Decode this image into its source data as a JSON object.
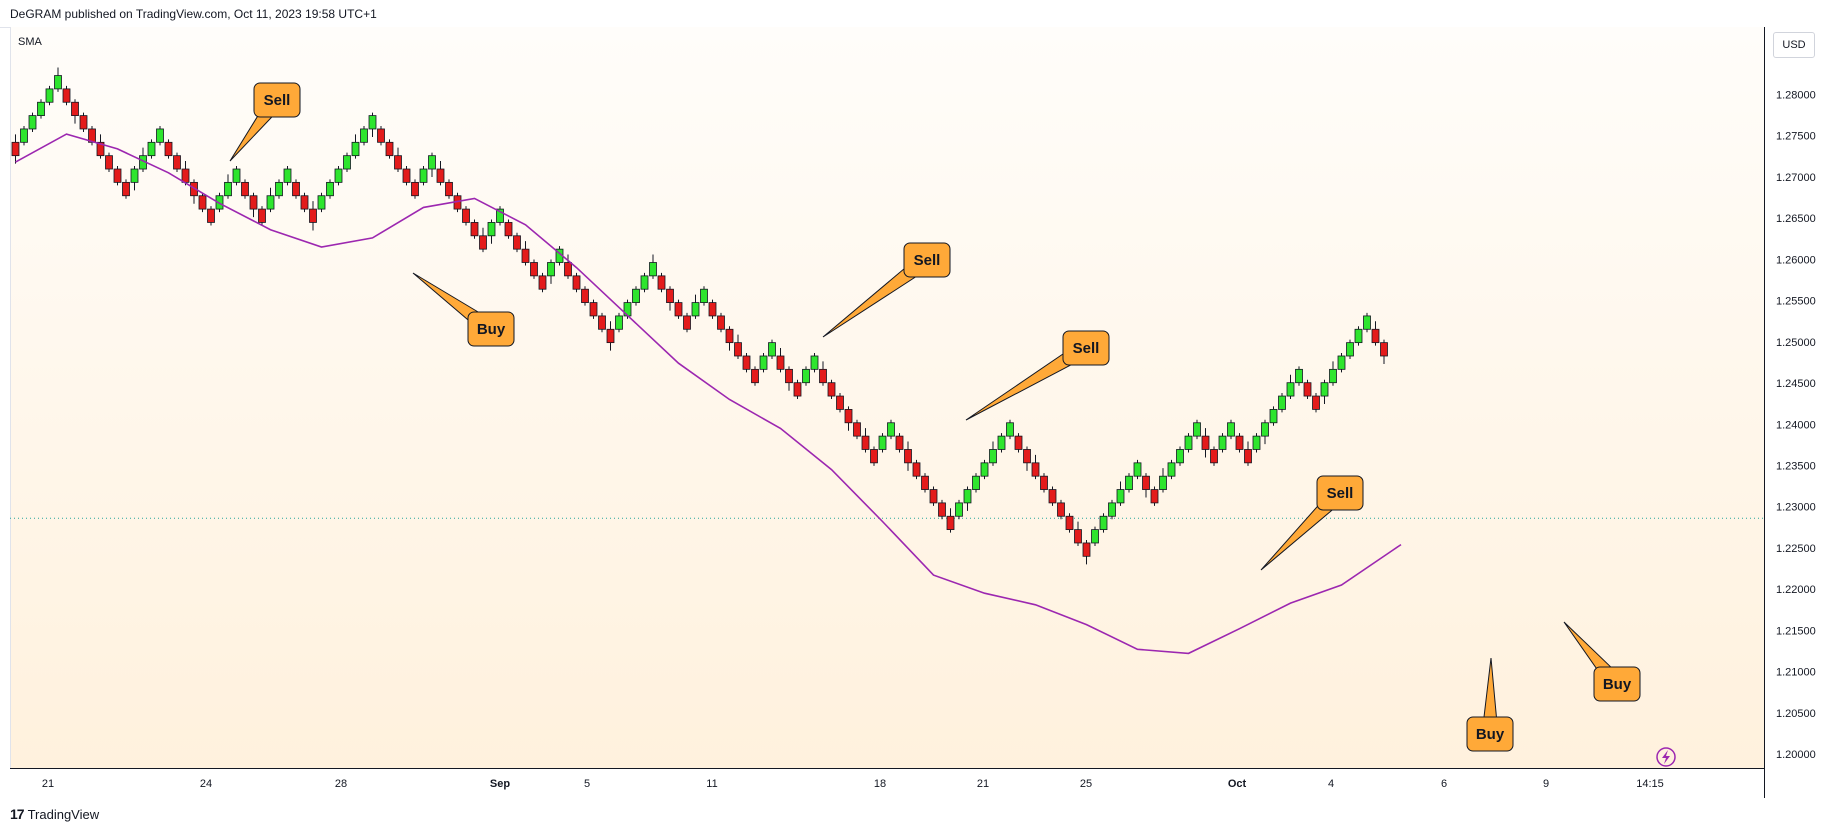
{
  "header": {
    "published_text": "DeGRAM published on TradingView.com, Oct 11, 2023 19:58 UTC+1"
  },
  "indicator": {
    "label": "SMA"
  },
  "price_axis": {
    "currency": "USD"
  },
  "footer": {
    "brand": "TradingView",
    "logo_mark": "17"
  },
  "colors": {
    "up": "#2ee52e",
    "down": "#e31b1b",
    "sma": "#9c27b0",
    "callout": "#ffa938"
  },
  "icons": {
    "replay": "lightning-icon"
  },
  "chart_data": {
    "type": "renko",
    "title": "",
    "ylim": [
      1.196,
      1.2845
    ],
    "yticks": [
      "1.28000",
      "1.27500",
      "1.27000",
      "1.26500",
      "1.26000",
      "1.25500",
      "1.25000",
      "1.24500",
      "1.24000",
      "1.23500",
      "1.23000",
      "1.22500",
      "1.22000",
      "1.21500",
      "1.21000",
      "1.20500",
      "1.20000"
    ],
    "xticks": [
      "21",
      "24",
      "28",
      "Sep",
      "5",
      "11",
      "18",
      "21",
      "25",
      "Oct",
      "4",
      "6",
      "9",
      "14:15"
    ],
    "brick_size": 0.00162,
    "current_price": 1.2286,
    "start_price": 1.2742,
    "moves": [
      -1,
      1,
      1,
      1,
      1,
      1,
      -1,
      -1,
      -1,
      -1,
      -1,
      -1,
      -1,
      -1,
      1,
      1,
      1,
      1,
      -1,
      -1,
      -1,
      -1,
      -1,
      -1,
      1,
      1,
      1,
      -1,
      -1,
      -1,
      1,
      1,
      1,
      -1,
      -1,
      -1,
      1,
      1,
      1,
      1,
      1,
      1,
      1,
      -1,
      -1,
      -1,
      -1,
      -1,
      1,
      1,
      -1,
      -1,
      -1,
      -1,
      -1,
      -1,
      1,
      1,
      -1,
      -1,
      -1,
      -1,
      -1,
      1,
      1,
      -1,
      -1,
      -1,
      -1,
      -1,
      -1,
      1,
      1,
      1,
      1,
      1,
      -1,
      -1,
      -1,
      -1,
      1,
      1,
      -1,
      -1,
      -1,
      -1,
      -1,
      -1,
      1,
      1,
      -1,
      -1,
      -1,
      1,
      1,
      -1,
      -1,
      -1,
      -1,
      -1,
      -1,
      -1,
      1,
      1,
      -1,
      -1,
      -1,
      -1,
      -1,
      -1,
      -1,
      1,
      1,
      1,
      1,
      1,
      1,
      1,
      -1,
      -1,
      -1,
      -1,
      -1,
      -1,
      -1,
      -1,
      -1,
      1,
      1,
      1,
      1,
      1,
      1,
      -1,
      -1,
      1,
      1,
      1,
      1,
      1,
      -1,
      -1,
      1,
      1,
      -1,
      -1,
      1,
      1,
      1,
      1,
      1,
      1,
      -1,
      -1,
      1,
      1,
      1,
      1,
      1,
      1,
      -1,
      -1
    ],
    "sma": [
      [
        0,
        1.2718
      ],
      [
        6,
        1.2752
      ],
      [
        12,
        1.2734
      ],
      [
        18,
        1.2705
      ],
      [
        24,
        1.2668
      ],
      [
        30,
        1.2636
      ],
      [
        36,
        1.2615
      ],
      [
        42,
        1.2626
      ],
      [
        48,
        1.2663
      ],
      [
        54,
        1.2674
      ],
      [
        60,
        1.2642
      ],
      [
        66,
        1.259
      ],
      [
        72,
        1.2532
      ],
      [
        78,
        1.2474
      ],
      [
        84,
        1.243
      ],
      [
        90,
        1.2395
      ],
      [
        96,
        1.2345
      ],
      [
        102,
        1.2282
      ],
      [
        108,
        1.2217
      ],
      [
        114,
        1.2195
      ],
      [
        120,
        1.2181
      ],
      [
        126,
        1.2157
      ],
      [
        132,
        1.2127
      ],
      [
        138,
        1.2122
      ],
      [
        144,
        1.2152
      ],
      [
        150,
        1.2183
      ],
      [
        156,
        1.2205
      ],
      [
        162,
        1.2247
      ],
      [
        163,
        1.2254
      ]
    ],
    "callouts": [
      {
        "label": "Sell",
        "box": [
          277,
          100
        ],
        "tip": [
          230,
          161
        ]
      },
      {
        "label": "Buy",
        "box": [
          491,
          329
        ],
        "tip": [
          413,
          273
        ]
      },
      {
        "label": "Sell",
        "box": [
          927,
          260
        ],
        "tip": [
          823,
          337
        ]
      },
      {
        "label": "Sell",
        "box": [
          1086,
          348
        ],
        "tip": [
          966,
          420
        ]
      },
      {
        "label": "Sell",
        "box": [
          1340,
          493
        ],
        "tip": [
          1261,
          570
        ]
      },
      {
        "label": "Buy",
        "box": [
          1490,
          734
        ],
        "tip": [
          1491,
          658
        ]
      },
      {
        "label": "Buy",
        "box": [
          1617,
          684
        ],
        "tip": [
          1564,
          622
        ]
      }
    ]
  }
}
